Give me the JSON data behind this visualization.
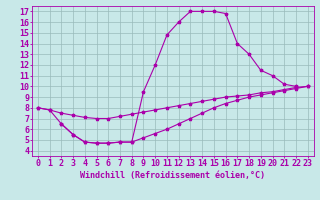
{
  "bg_color": "#c8e8e8",
  "line_color": "#aa00aa",
  "grid_color": "#99bbbb",
  "xlabel": "Windchill (Refroidissement éolien,°C)",
  "xlim": [
    -0.5,
    23.5
  ],
  "ylim": [
    3.5,
    17.5
  ],
  "xticks": [
    0,
    1,
    2,
    3,
    4,
    5,
    6,
    7,
    8,
    9,
    10,
    11,
    12,
    13,
    14,
    15,
    16,
    17,
    18,
    19,
    20,
    21,
    22,
    23
  ],
  "yticks": [
    4,
    5,
    6,
    7,
    8,
    9,
    10,
    11,
    12,
    13,
    14,
    15,
    16,
    17
  ],
  "curve1_x": [
    0,
    1,
    2,
    3,
    4,
    5,
    6,
    7,
    8,
    9,
    10,
    11,
    12,
    13,
    14,
    15,
    16,
    17,
    18,
    19,
    20,
    21,
    22
  ],
  "curve1_y": [
    8.0,
    7.8,
    6.5,
    5.5,
    4.8,
    4.7,
    4.7,
    4.8,
    4.8,
    9.5,
    12.0,
    14.8,
    16.0,
    17.0,
    17.0,
    17.0,
    16.8,
    14.0,
    13.0,
    11.5,
    11.0,
    10.2,
    10.0
  ],
  "curve2_x": [
    0,
    1,
    2,
    3,
    4,
    5,
    6,
    7,
    8,
    9,
    10,
    11,
    12,
    13,
    14,
    15,
    16,
    17,
    18,
    19,
    20,
    21,
    22,
    23
  ],
  "curve2_y": [
    8.0,
    7.8,
    7.5,
    7.3,
    7.1,
    7.0,
    7.0,
    7.2,
    7.4,
    7.6,
    7.8,
    8.0,
    8.2,
    8.4,
    8.6,
    8.8,
    9.0,
    9.1,
    9.2,
    9.4,
    9.5,
    9.7,
    9.9,
    10.0
  ],
  "curve3_x": [
    2,
    3,
    4,
    5,
    6,
    7,
    8,
    9,
    10,
    11,
    12,
    13,
    14,
    15,
    16,
    17,
    18,
    19,
    20,
    21,
    22,
    23
  ],
  "curve3_y": [
    6.5,
    5.5,
    4.8,
    4.7,
    4.7,
    4.8,
    4.8,
    5.2,
    5.6,
    6.0,
    6.5,
    7.0,
    7.5,
    8.0,
    8.4,
    8.7,
    9.0,
    9.2,
    9.4,
    9.6,
    9.8,
    10.0
  ],
  "font_size": 6,
  "marker": "*",
  "markersize": 2.5,
  "linewidth": 0.8
}
